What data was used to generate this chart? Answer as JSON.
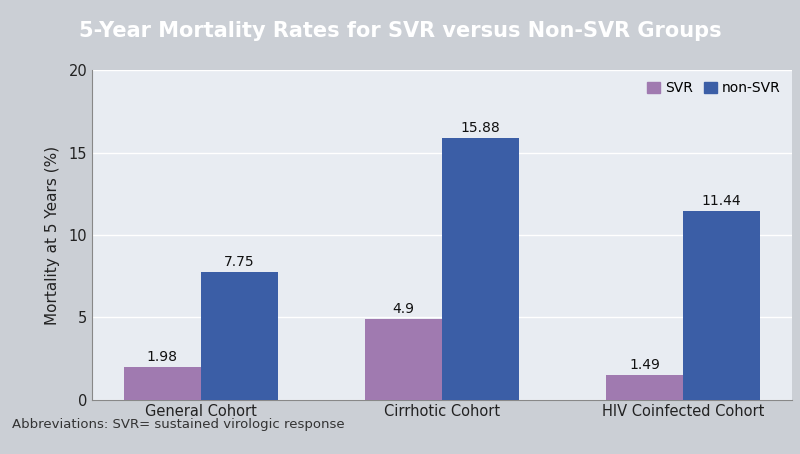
{
  "title": "5-Year Mortality Rates for SVR versus Non-SVR Groups",
  "ylabel": "Mortality at 5 Years (%)",
  "categories": [
    "General Cohort",
    "Cirrhotic Cohort",
    "HIV Coinfected Cohort"
  ],
  "svr_values": [
    1.98,
    4.9,
    1.49
  ],
  "nonsvr_values": [
    7.75,
    15.88,
    11.44
  ],
  "svr_color": "#A07AB0",
  "nonsvr_color": "#3B5EA6",
  "title_bg_color": "#646E7A",
  "title_text_color": "#FFFFFF",
  "plot_bg_color": "#E8ECF2",
  "outer_bg_color": "#CBCFD5",
  "abbrev_bg_color": "#D8DBE1",
  "ylim": [
    0,
    20
  ],
  "yticks": [
    0,
    5,
    10,
    15,
    20
  ],
  "bar_width": 0.32,
  "legend_labels": [
    "SVR",
    "non-SVR"
  ],
  "abbreviation_text": "Abbreviations: SVR= sustained virologic response",
  "title_fontsize": 15,
  "label_fontsize": 11,
  "tick_fontsize": 10.5,
  "legend_fontsize": 10,
  "bar_label_fontsize": 10,
  "abbrev_fontsize": 9.5
}
